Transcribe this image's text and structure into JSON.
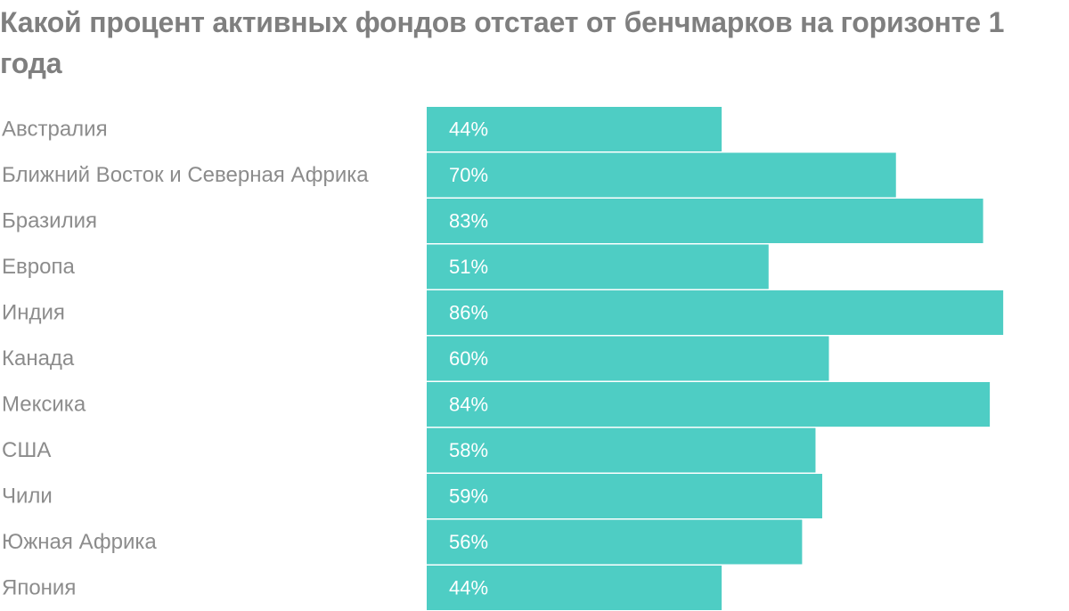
{
  "chart_data": {
    "type": "bar",
    "orientation": "horizontal",
    "title": "Какой процент активных фондов отстает от бенчмарков на горизонте 1 года",
    "categories": [
      "Австралия",
      "Ближний Восток и Северная Африка",
      "Бразилия",
      "Европа",
      "Индия",
      "Канада",
      "Мексика",
      "США",
      "Чили",
      "Южная Африка",
      "Япония"
    ],
    "values": [
      44,
      70,
      83,
      51,
      86,
      60,
      84,
      58,
      59,
      56,
      44
    ],
    "value_labels": [
      "44%",
      "70%",
      "83%",
      "51%",
      "86%",
      "60%",
      "84%",
      "58%",
      "59%",
      "56%",
      "44%"
    ],
    "unit": "%",
    "xlim": [
      0,
      100
    ],
    "grid": false,
    "legend": "none",
    "bar_color": "#4ecdc4"
  }
}
